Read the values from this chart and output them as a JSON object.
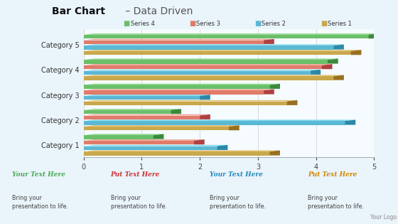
{
  "title_bold": "Bar Chart",
  "title_light": " – Data Driven",
  "categories": [
    "Category 1",
    "Category 2",
    "Category 3",
    "Category 4",
    "Category 5"
  ],
  "series_labels": [
    "Series 4",
    "Series 3",
    "Series 2",
    "Series 1"
  ],
  "series_colors": [
    "#6abf69",
    "#e07b6a",
    "#5bb8d4",
    "#c9a84c"
  ],
  "series_colors_top": [
    "#8dd68c",
    "#f0a090",
    "#7ed6ea",
    "#dfc070"
  ],
  "series_colors_side": [
    "#3a8a3a",
    "#b04040",
    "#2a88a8",
    "#997020"
  ],
  "data": [
    [
      1.2,
      1.5,
      3.2,
      4.2,
      4.9
    ],
    [
      1.9,
      2.0,
      3.1,
      4.1,
      3.1
    ],
    [
      2.3,
      4.5,
      2.0,
      3.9,
      4.3
    ],
    [
      3.2,
      2.5,
      3.5,
      4.3,
      4.6
    ]
  ],
  "xlim": [
    0,
    5
  ],
  "xticks": [
    0,
    1,
    2,
    3,
    4,
    5
  ],
  "bg_color": "#eaf4fb",
  "chart_bg": "#f5fbff",
  "footer_bg": "#cce8f4",
  "footer_texts": [
    {
      "title": "Your Text Here",
      "color": "#4aaa55",
      "body": "Bring your\npresentation to life."
    },
    {
      "title": "Put Text Here",
      "color": "#cc3333",
      "body": "Bring your\npresentation to life."
    },
    {
      "title": "Your Text Here",
      "color": "#2288bb",
      "body": "Bring your\npresentation to life."
    },
    {
      "title": "Put Text Here",
      "color": "#cc8800",
      "body": "Bring your\npresentation to life."
    }
  ]
}
